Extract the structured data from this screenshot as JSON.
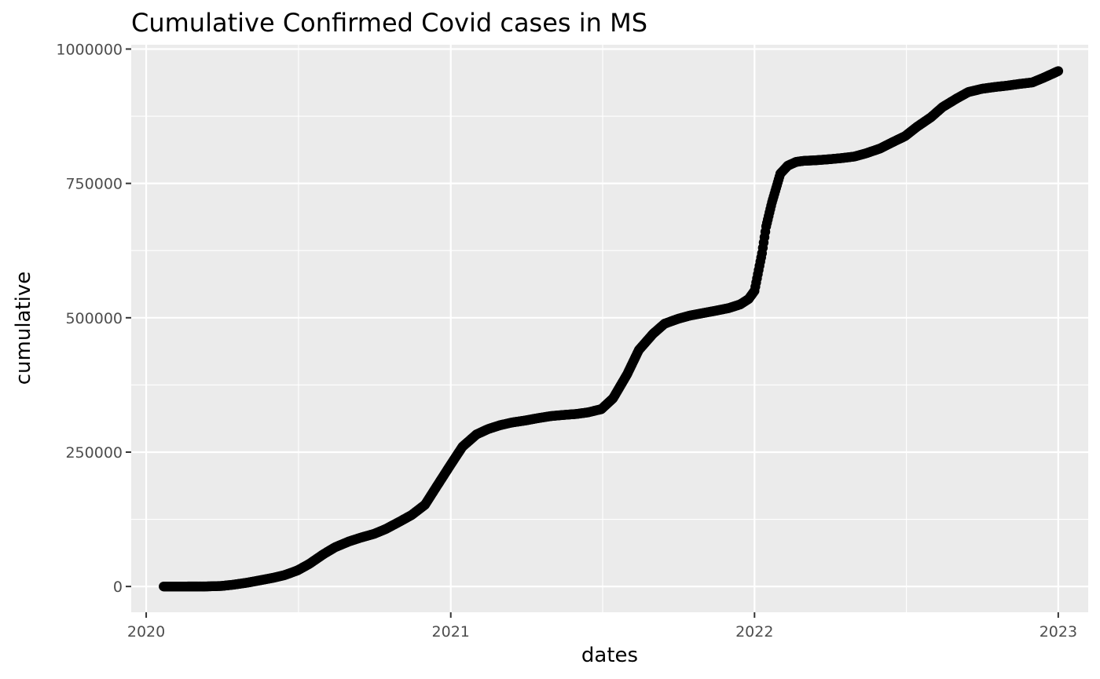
{
  "chart_data": {
    "type": "scatter",
    "title": "Cumulative Confirmed Covid cases in MS",
    "xlabel": "dates",
    "ylabel": "cumulative",
    "x_ticks": [
      "2020",
      "2021",
      "2022",
      "2023"
    ],
    "y_ticks": [
      "0",
      "250000",
      "500000",
      "750000",
      "1000000"
    ],
    "x_range": [
      "2019-12-14",
      "2023-02-06"
    ],
    "y_range": [
      -48000,
      1008000
    ],
    "grid": true,
    "legend": "none",
    "colors": {
      "panel": "#ebebeb",
      "grid": "#ffffff",
      "points": "#000000"
    },
    "series": [
      {
        "points": [
          [
            "2020-01-22",
            0
          ],
          [
            "2020-02-15",
            0
          ],
          [
            "2020-03-11",
            10
          ],
          [
            "2020-04-01",
            1000
          ],
          [
            "2020-04-15",
            3400
          ],
          [
            "2020-05-01",
            7000
          ],
          [
            "2020-05-15",
            11000
          ],
          [
            "2020-06-01",
            16000
          ],
          [
            "2020-06-15",
            21000
          ],
          [
            "2020-07-01",
            30000
          ],
          [
            "2020-07-15",
            42000
          ],
          [
            "2020-08-01",
            60000
          ],
          [
            "2020-08-15",
            73000
          ],
          [
            "2020-09-01",
            84000
          ],
          [
            "2020-09-15",
            91000
          ],
          [
            "2020-10-01",
            98000
          ],
          [
            "2020-10-15",
            107000
          ],
          [
            "2020-11-01",
            121000
          ],
          [
            "2020-11-15",
            133000
          ],
          [
            "2020-12-01",
            152000
          ],
          [
            "2020-12-15",
            186000
          ],
          [
            "2021-01-01",
            227000
          ],
          [
            "2021-01-15",
            260000
          ],
          [
            "2021-02-01",
            283000
          ],
          [
            "2021-02-15",
            293000
          ],
          [
            "2021-03-01",
            300000
          ],
          [
            "2021-03-15",
            305000
          ],
          [
            "2021-04-01",
            309000
          ],
          [
            "2021-04-15",
            313000
          ],
          [
            "2021-05-01",
            317000
          ],
          [
            "2021-05-15",
            319000
          ],
          [
            "2021-06-01",
            321000
          ],
          [
            "2021-06-15",
            324000
          ],
          [
            "2021-07-01",
            330000
          ],
          [
            "2021-07-15",
            350000
          ],
          [
            "2021-08-01",
            395000
          ],
          [
            "2021-08-15",
            440000
          ],
          [
            "2021-09-01",
            470000
          ],
          [
            "2021-09-15",
            489000
          ],
          [
            "2021-10-01",
            498000
          ],
          [
            "2021-10-15",
            504000
          ],
          [
            "2021-11-01",
            509000
          ],
          [
            "2021-11-15",
            513000
          ],
          [
            "2021-12-01",
            518000
          ],
          [
            "2021-12-15",
            525000
          ],
          [
            "2021-12-25",
            535000
          ],
          [
            "2022-01-01",
            550000
          ],
          [
            "2022-01-10",
            620000
          ],
          [
            "2022-01-15",
            670000
          ],
          [
            "2022-01-22",
            715000
          ],
          [
            "2022-02-01",
            768000
          ],
          [
            "2022-02-10",
            783000
          ],
          [
            "2022-02-20",
            790000
          ],
          [
            "2022-03-01",
            792000
          ],
          [
            "2022-03-15",
            793000
          ],
          [
            "2022-04-01",
            795000
          ],
          [
            "2022-04-15",
            797000
          ],
          [
            "2022-05-01",
            800000
          ],
          [
            "2022-05-15",
            806000
          ],
          [
            "2022-06-01",
            815000
          ],
          [
            "2022-06-15",
            826000
          ],
          [
            "2022-07-01",
            838000
          ],
          [
            "2022-07-15",
            855000
          ],
          [
            "2022-08-01",
            873000
          ],
          [
            "2022-08-15",
            892000
          ],
          [
            "2022-09-01",
            908000
          ],
          [
            "2022-09-15",
            920000
          ],
          [
            "2022-10-01",
            926000
          ],
          [
            "2022-10-15",
            929000
          ],
          [
            "2022-11-01",
            932000
          ],
          [
            "2022-11-15",
            935000
          ],
          [
            "2022-12-01",
            938000
          ],
          [
            "2022-12-15",
            947000
          ],
          [
            "2023-01-01",
            959000
          ]
        ]
      }
    ]
  }
}
